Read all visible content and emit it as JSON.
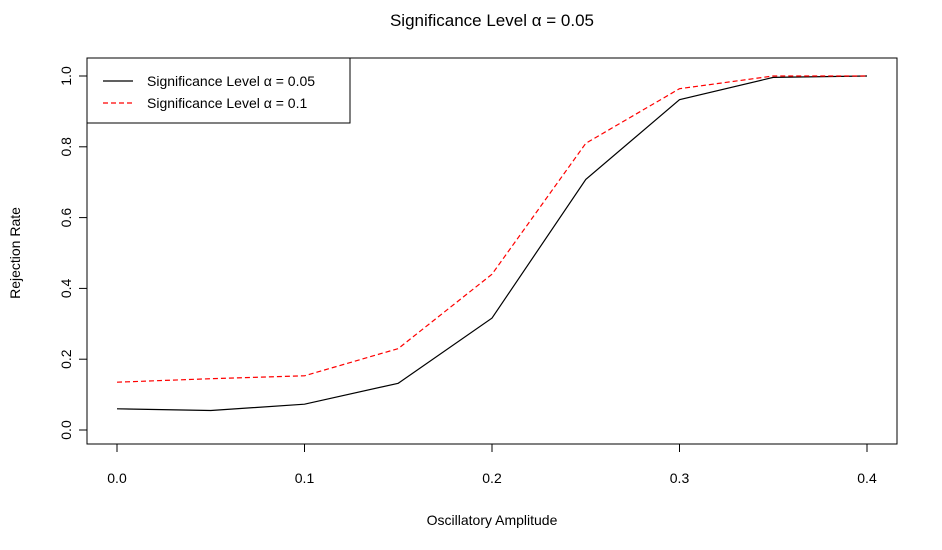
{
  "chart_data": {
    "type": "line",
    "title": "Significance Level α = 0.05",
    "xlabel": "Oscillatory Amplitude",
    "ylabel": "Rejection Rate",
    "xlim": [
      0.0,
      0.4
    ],
    "ylim": [
      0.0,
      1.0
    ],
    "x_ticks": [
      "0.0",
      "0.1",
      "0.2",
      "0.3",
      "0.4"
    ],
    "y_ticks": [
      "0.0",
      "0.2",
      "0.4",
      "0.6",
      "0.8",
      "1.0"
    ],
    "x": [
      0.0,
      0.05,
      0.1,
      0.15,
      0.2,
      0.25,
      0.3,
      0.35,
      0.4
    ],
    "grid": false,
    "legend_position": "top-left",
    "series": [
      {
        "name": "Significance Level α = 0.05",
        "color": "#000000",
        "line_style": "solid",
        "values": [
          0.06,
          0.055,
          0.073,
          0.132,
          0.316,
          0.708,
          0.933,
          0.996,
          1.0
        ]
      },
      {
        "name": "Significance Level α = 0.1",
        "color": "#ff0000",
        "line_style": "dashed",
        "values": [
          0.135,
          0.145,
          0.153,
          0.23,
          0.44,
          0.81,
          0.964,
          1.0,
          1.0
        ]
      }
    ]
  }
}
